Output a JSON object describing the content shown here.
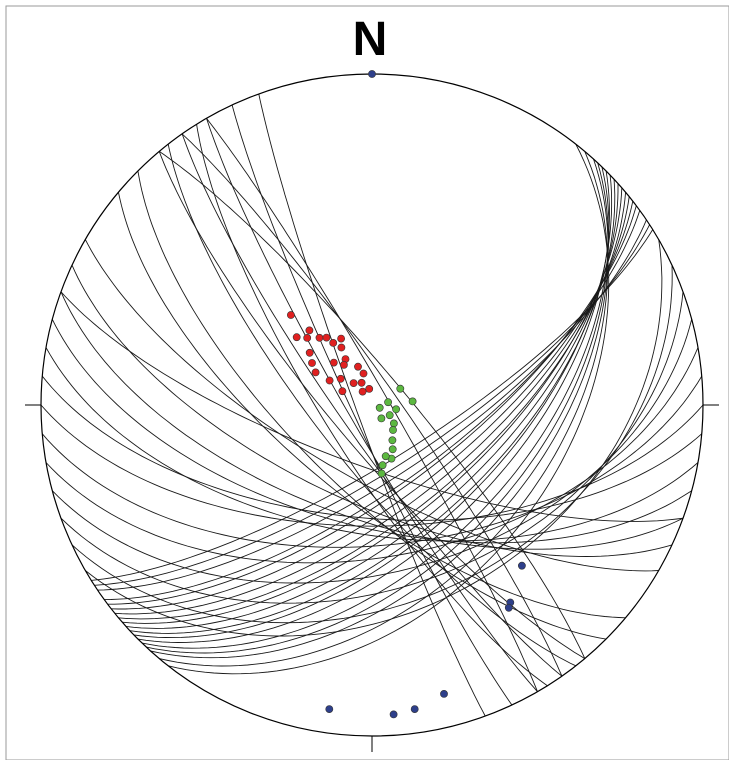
{
  "stereonet": {
    "north_label": "N",
    "colors": {
      "outline": "#000000",
      "great_circle": "#1a1a1a",
      "cluster_red": "#e02020",
      "cluster_green": "#5cb840",
      "cluster_blue": "#2e3f8a"
    },
    "great_circles": [
      {
        "strike": 45,
        "dip": 55
      },
      {
        "strike": 46,
        "dip": 57
      },
      {
        "strike": 47,
        "dip": 58
      },
      {
        "strike": 48,
        "dip": 60
      },
      {
        "strike": 49,
        "dip": 62
      },
      {
        "strike": 50,
        "dip": 63
      },
      {
        "strike": 44,
        "dip": 52
      },
      {
        "strike": 43,
        "dip": 50
      },
      {
        "strike": 51,
        "dip": 65
      },
      {
        "strike": 52,
        "dip": 67
      },
      {
        "strike": 53,
        "dip": 69
      },
      {
        "strike": 42,
        "dip": 48
      },
      {
        "strike": 40,
        "dip": 45
      },
      {
        "strike": 54,
        "dip": 70
      },
      {
        "strike": 56,
        "dip": 72
      },
      {
        "strike": 38,
        "dip": 42
      },
      {
        "strike": 57,
        "dip": 74
      },
      {
        "strike": 58,
        "dip": 76
      },
      {
        "strike": 140,
        "dip": 80
      },
      {
        "strike": 145,
        "dip": 82
      },
      {
        "strike": 150,
        "dip": 84
      },
      {
        "strike": 155,
        "dip": 85
      },
      {
        "strike": 160,
        "dip": 86
      },
      {
        "strike": 142,
        "dip": 76
      },
      {
        "strike": 148,
        "dip": 78
      },
      {
        "strike": 135,
        "dip": 70
      },
      {
        "strike": 130,
        "dip": 68
      },
      {
        "strike": 320,
        "dip": 82
      },
      {
        "strike": 325,
        "dip": 84
      },
      {
        "strike": 330,
        "dip": 86
      },
      {
        "strike": 115,
        "dip": 66
      },
      {
        "strike": 110,
        "dip": 62
      },
      {
        "strike": 120,
        "dip": 72
      },
      {
        "strike": 105,
        "dip": 60
      },
      {
        "strike": 100,
        "dip": 58
      },
      {
        "strike": 95,
        "dip": 62
      },
      {
        "strike": 90,
        "dip": 60
      },
      {
        "strike": 85,
        "dip": 55
      },
      {
        "strike": 80,
        "dip": 52
      },
      {
        "strike": 75,
        "dip": 48
      },
      {
        "strike": 70,
        "dip": 44
      },
      {
        "strike": 65,
        "dip": 40
      },
      {
        "strike": 60,
        "dip": 38
      },
      {
        "strike": 110,
        "dip": 75
      }
    ],
    "poles_red": [
      {
        "trend": 318,
        "plunge": 60
      },
      {
        "trend": 312,
        "plunge": 65
      },
      {
        "trend": 316,
        "plunge": 67
      },
      {
        "trend": 320,
        "plunge": 66
      },
      {
        "trend": 322,
        "plunge": 69
      },
      {
        "trend": 326,
        "plunge": 70
      },
      {
        "trend": 328,
        "plunge": 72
      },
      {
        "trend": 332,
        "plunge": 74
      },
      {
        "trend": 335,
        "plunge": 72
      },
      {
        "trend": 310,
        "plunge": 70
      },
      {
        "trend": 305,
        "plunge": 72
      },
      {
        "trend": 300,
        "plunge": 74
      },
      {
        "trend": 330,
        "plunge": 77
      },
      {
        "trend": 325,
        "plunge": 78
      },
      {
        "trend": 318,
        "plunge": 76
      },
      {
        "trend": 340,
        "plunge": 80
      },
      {
        "trend": 345,
        "plunge": 82
      },
      {
        "trend": 310,
        "plunge": 80
      },
      {
        "trend": 300,
        "plunge": 78
      },
      {
        "trend": 295,
        "plunge": 82
      },
      {
        "trend": 320,
        "plunge": 83
      },
      {
        "trend": 335,
        "plunge": 84
      },
      {
        "trend": 325,
        "plunge": 86
      },
      {
        "trend": 350,
        "plunge": 86
      }
    ],
    "poles_green": [
      {
        "trend": 80,
        "plunge": 86
      },
      {
        "trend": 100,
        "plunge": 84
      },
      {
        "trend": 120,
        "plunge": 85
      },
      {
        "trend": 130,
        "plunge": 83
      },
      {
        "trend": 140,
        "plunge": 82
      },
      {
        "trend": 150,
        "plunge": 80
      },
      {
        "trend": 155,
        "plunge": 78
      },
      {
        "trend": 160,
        "plunge": 76
      },
      {
        "trend": 165,
        "plunge": 77
      },
      {
        "trend": 170,
        "plunge": 75
      },
      {
        "trend": 172,
        "plunge": 73
      },
      {
        "trend": 85,
        "plunge": 80
      },
      {
        "trend": 60,
        "plunge": 82
      },
      {
        "trend": 145,
        "plunge": 86
      },
      {
        "trend": 110,
        "plunge": 88
      }
    ],
    "poles_blue": [
      {
        "trend": 0,
        "plunge": 0
      },
      {
        "trend": 137,
        "plunge": 34
      },
      {
        "trend": 145,
        "plunge": 28
      },
      {
        "trend": 146,
        "plunge": 27
      },
      {
        "trend": 166,
        "plunge": 11
      },
      {
        "trend": 172,
        "plunge": 8
      },
      {
        "trend": 176,
        "plunge": 7
      },
      {
        "trend": 188,
        "plunge": 8
      }
    ]
  }
}
